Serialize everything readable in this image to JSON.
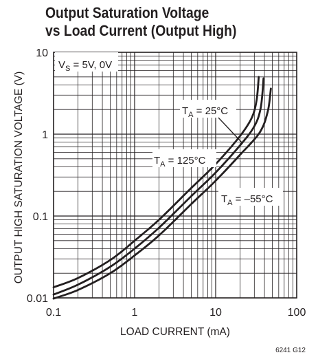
{
  "chart_data": {
    "type": "line",
    "title_line1": "Output Saturation Voltage",
    "title_line2": "vs Load Current (Output High)",
    "xlabel": "LOAD CURRENT (mA)",
    "ylabel": "OUTPUT HIGH SATURATION VOLTAGE (V)",
    "x_scale": "log",
    "y_scale": "log",
    "xlim": [
      0.1,
      100
    ],
    "ylim": [
      0.01,
      10
    ],
    "x_ticks": [
      "0.1",
      "1",
      "10",
      "100"
    ],
    "y_ticks": [
      "0.01",
      "0.1",
      "1",
      "10"
    ],
    "grid": true,
    "condition_label": {
      "prefix": "V",
      "sub": "S",
      "suffix": " = 5V, 0V"
    },
    "series": [
      {
        "name": "T_A = 125°C",
        "label": {
          "prefix": "T",
          "sub": "A",
          "suffix": " = 125°C"
        },
        "x": [
          0.1,
          0.2,
          0.5,
          1,
          2,
          5,
          10,
          20,
          28,
          32,
          34
        ],
        "y": [
          0.0135,
          0.0175,
          0.029,
          0.05,
          0.09,
          0.22,
          0.43,
          0.95,
          1.6,
          2.6,
          5.0
        ]
      },
      {
        "name": "T_A = 25°C",
        "label": {
          "prefix": "T",
          "sub": "A",
          "suffix": " = 25°C"
        },
        "x": [
          0.1,
          0.2,
          0.5,
          1,
          2,
          5,
          10,
          20,
          30,
          36,
          39
        ],
        "y": [
          0.011,
          0.0145,
          0.024,
          0.04,
          0.072,
          0.175,
          0.34,
          0.73,
          1.25,
          2.1,
          4.8
        ]
      },
      {
        "name": "T_A = -55°C",
        "label": {
          "prefix": "T",
          "sub": "A",
          "suffix": " = –55°C"
        },
        "x": [
          0.1,
          0.2,
          0.5,
          1,
          2,
          5,
          10,
          20,
          35,
          44,
          48
        ],
        "y": [
          0.0098,
          0.0125,
          0.02,
          0.033,
          0.058,
          0.14,
          0.27,
          0.56,
          1.05,
          1.9,
          3.6
        ]
      }
    ],
    "figure_code": "6241 G12"
  }
}
